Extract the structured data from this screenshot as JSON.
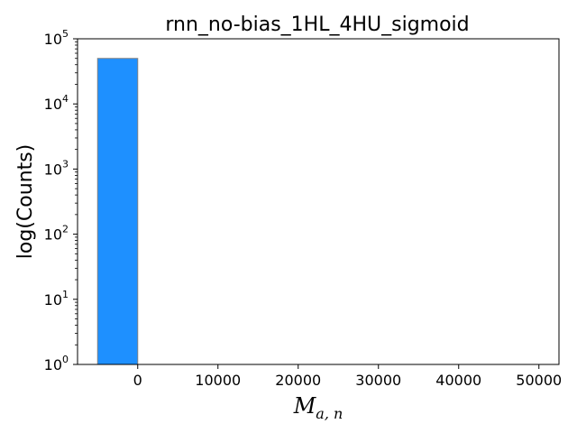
{
  "chart_data": {
    "type": "bar",
    "title": "rnn_no-bias_1HL_4HU_sigmoid",
    "xlabel_main": "M",
    "xlabel_sub": "a, n",
    "ylabel": "log(Counts)",
    "y_scale": "log",
    "ylim": [
      1,
      100000
    ],
    "xlim": [
      -7500,
      52500
    ],
    "x_ticks": [
      0,
      10000,
      20000,
      30000,
      40000,
      50000
    ],
    "x_tick_labels": [
      "0",
      "10000",
      "20000",
      "30000",
      "40000",
      "50000"
    ],
    "y_tick_exponents": [
      0,
      1,
      2,
      3,
      4,
      5
    ],
    "y_tick_base": "10",
    "bins": [
      {
        "x0": -5000,
        "x1": 0,
        "count": 50000
      }
    ],
    "bar_color": "#1e90ff",
    "bar_edge_color": "#808080",
    "grid": false,
    "legend": "none"
  }
}
